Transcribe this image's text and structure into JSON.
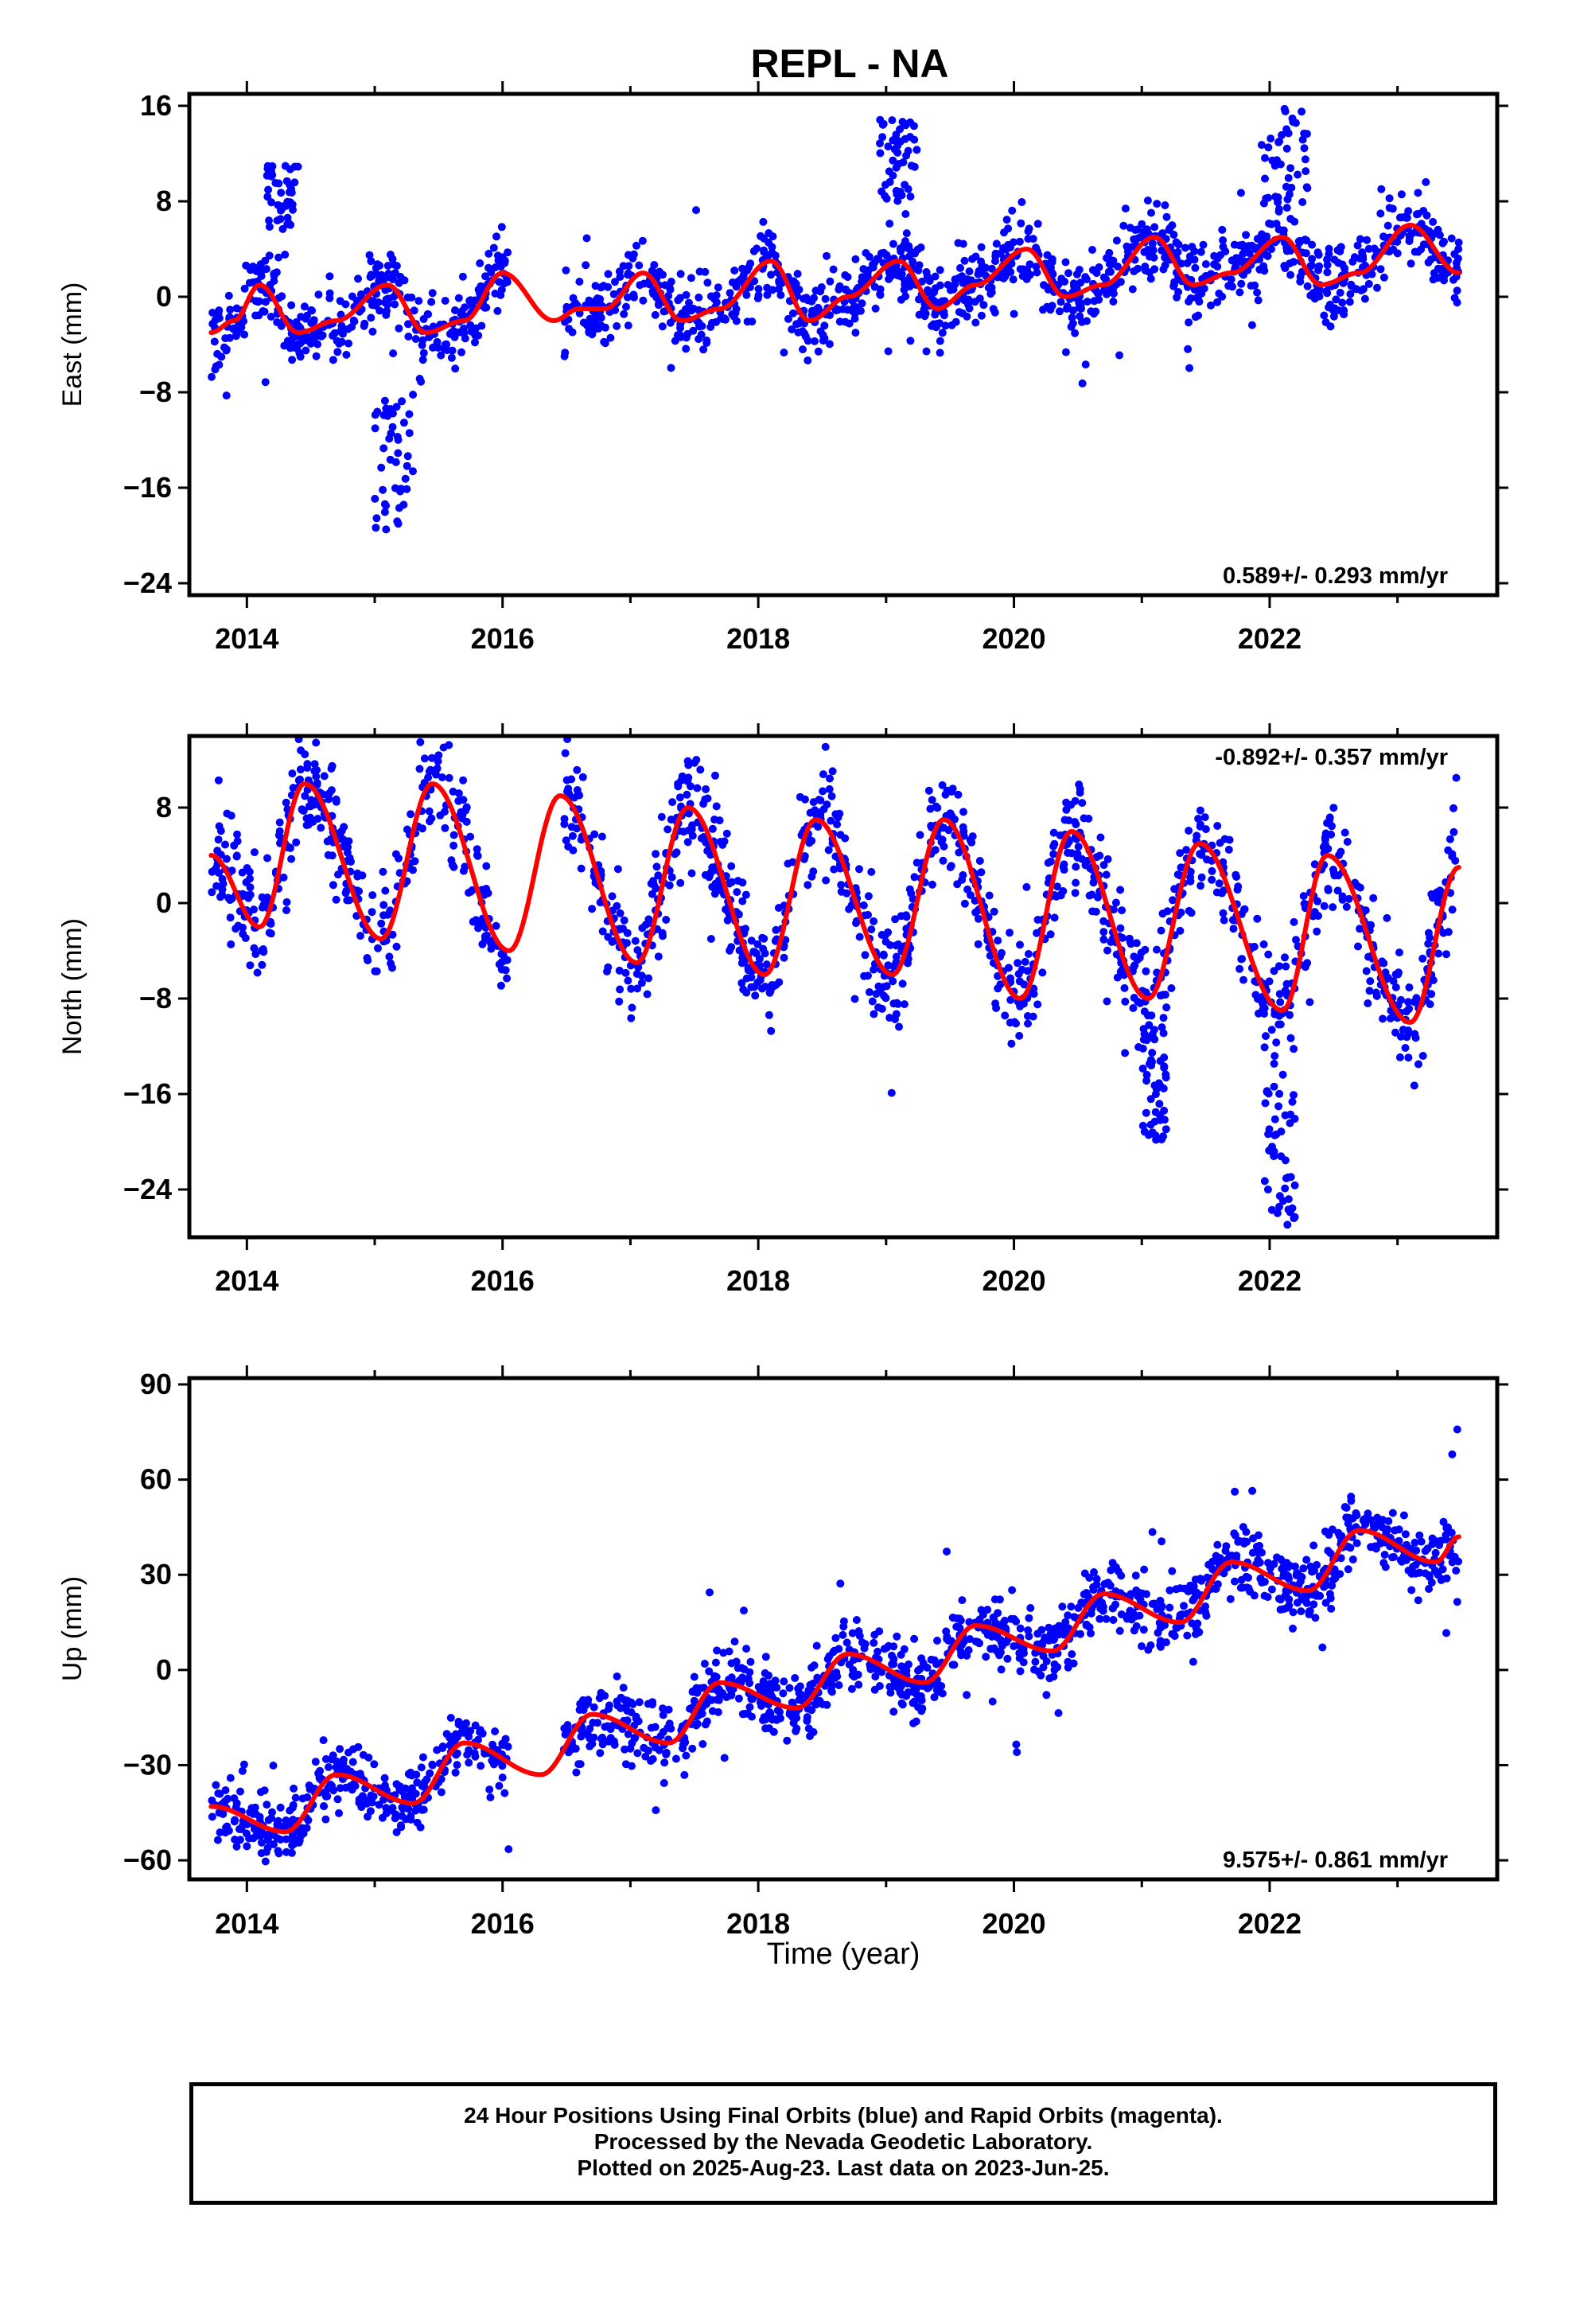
{
  "title": "REPL - NA",
  "xlabel": "Time (year)",
  "colors": {
    "points": "#0000ff",
    "model": "#ff0000",
    "frame": "#000000"
  },
  "footer": {
    "line1": "24 Hour Positions Using Final Orbits (blue) and Rapid Orbits (magenta).",
    "line2": "Processed by the Nevada Geodetic Laboratory.",
    "line3": "Plotted on 2025-Aug-23. Last data on 2023-Jun-25."
  },
  "chart_data": [
    {
      "type": "scatter",
      "ylabel": "East (mm)",
      "velocity": "0.589+/- 0.293 mm/yr",
      "velocity_position": "bottom-right",
      "xlim": [
        2013.55,
        2023.78
      ],
      "ylim": [
        -25,
        17
      ],
      "xticks": [
        "2014",
        "2016",
        "2018",
        "2020",
        "2022"
      ],
      "yticks": [
        "16",
        "8",
        "0",
        "−8",
        "−16",
        "−24"
      ],
      "x_range": [
        2013.72,
        2023.48
      ],
      "data_gap": [
        2016.05,
        2016.48
      ],
      "model": {
        "x": [
          2013.72,
          2013.9,
          2014.1,
          2014.4,
          2014.7,
          2015.1,
          2015.4,
          2015.7,
          2016.0,
          2016.4,
          2016.6,
          2016.8,
          2017.1,
          2017.4,
          2017.7,
          2018.1,
          2018.4,
          2018.7,
          2019.1,
          2019.4,
          2019.7,
          2020.1,
          2020.4,
          2020.7,
          2021.1,
          2021.4,
          2021.7,
          2022.1,
          2022.4,
          2022.7,
          2023.1,
          2023.48
        ],
        "y": [
          -3,
          -2,
          1,
          -3,
          -2,
          1,
          -3,
          -2,
          2,
          -2,
          -1,
          -1,
          2,
          -2,
          -1,
          3,
          -2,
          0,
          3,
          -1,
          1,
          4,
          0,
          1,
          5,
          1,
          2,
          5,
          1,
          2,
          6,
          2
        ]
      },
      "points": {
        "n": 1500,
        "seed": 11,
        "noise": 1.5,
        "outlier_rate": 0.06,
        "clusters": [
          {
            "x": [
              2014.15,
              2014.4
            ],
            "y": [
              5,
              11
            ]
          },
          {
            "x": [
              2015.0,
              2015.3
            ],
            "y": [
              -20,
              -8
            ]
          },
          {
            "x": [
              2018.95,
              2019.25
            ],
            "y": [
              8,
              15
            ]
          },
          {
            "x": [
              2021.9,
              2022.3
            ],
            "y": [
              7,
              16
            ]
          }
        ]
      }
    },
    {
      "type": "scatter",
      "ylabel": "North (mm)",
      "velocity": "-0.892+/- 0.357 mm/yr",
      "velocity_position": "top-right",
      "xlim": [
        2013.55,
        2023.78
      ],
      "ylim": [
        -28,
        14
      ],
      "xticks": [
        "2014",
        "2016",
        "2018",
        "2020",
        "2022"
      ],
      "yticks": [
        "8",
        "0",
        "−8",
        "−16",
        "−24"
      ],
      "x_range": [
        2013.72,
        2023.48
      ],
      "data_gap": [
        2016.05,
        2016.48
      ],
      "model": {
        "x": [
          2013.72,
          2014.1,
          2014.45,
          2015.05,
          2015.45,
          2016.05,
          2016.45,
          2017.05,
          2017.45,
          2018.05,
          2018.45,
          2019.05,
          2019.45,
          2020.05,
          2020.45,
          2021.05,
          2021.45,
          2022.1,
          2022.45,
          2023.1,
          2023.48
        ],
        "y": [
          4,
          -2,
          10,
          -3,
          10,
          -4,
          9,
          -5,
          8,
          -6,
          7,
          -6,
          7,
          -8,
          6,
          -8,
          5,
          -9,
          4,
          -10,
          3
        ]
      },
      "points": {
        "n": 1500,
        "seed": 22,
        "noise": 2.2,
        "outlier_rate": 0.05,
        "clusters": [
          {
            "x": [
              2021.0,
              2021.2
            ],
            "y": [
              -20,
              -10
            ]
          },
          {
            "x": [
              2021.95,
              2022.2
            ],
            "y": [
              -27,
              -15
            ]
          }
        ]
      }
    },
    {
      "type": "scatter",
      "ylabel": "Up (mm)",
      "velocity": "9.575+/- 0.861 mm/yr",
      "velocity_position": "bottom-right",
      "xlim": [
        2013.55,
        2023.78
      ],
      "ylim": [
        -66,
        92
      ],
      "xticks": [
        "2014",
        "2016",
        "2018",
        "2020",
        "2022"
      ],
      "yticks": [
        "90",
        "60",
        "30",
        "0",
        "−30",
        "−60"
      ],
      "x_range": [
        2013.72,
        2023.48
      ],
      "data_gap": [
        2016.05,
        2016.48
      ],
      "model": {
        "x": [
          2013.72,
          2014.3,
          2014.7,
          2015.3,
          2015.7,
          2016.3,
          2016.7,
          2017.3,
          2017.7,
          2018.3,
          2018.7,
          2019.3,
          2019.7,
          2020.3,
          2020.7,
          2021.3,
          2021.7,
          2022.3,
          2022.7,
          2023.3,
          2023.48
        ],
        "y": [
          -43,
          -51,
          -33,
          -42,
          -23,
          -33,
          -14,
          -23,
          -4,
          -12,
          5,
          -4,
          14,
          6,
          24,
          15,
          34,
          25,
          44,
          34,
          42
        ]
      },
      "points": {
        "n": 1500,
        "seed": 33,
        "noise": 5.5,
        "outlier_rate": 0.03,
        "clusters": []
      }
    }
  ]
}
